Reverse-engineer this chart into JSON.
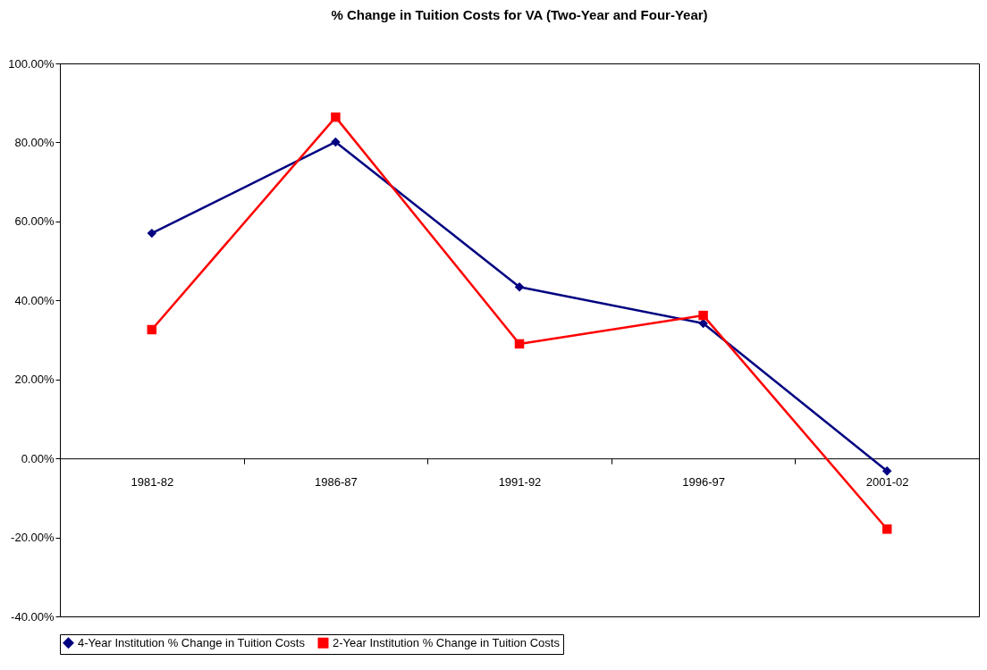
{
  "chart_data": {
    "type": "line",
    "title": "% Change in Tuition Costs for VA (Two-Year and Four-Year)",
    "categories": [
      "1981-82",
      "1986-87",
      "1991-92",
      "1996-97",
      "2001-02"
    ],
    "series": [
      {
        "name": "4-Year Institution % Change in Tuition Costs",
        "color": "#000080",
        "marker": "diamond",
        "values": [
          57.0,
          80.1,
          43.4,
          34.2,
          -3.2
        ]
      },
      {
        "name": "2-Year Institution % Change in Tuition Costs",
        "color": "#ff0000",
        "marker": "square",
        "values": [
          32.6,
          86.4,
          29.0,
          36.2,
          -17.9
        ]
      }
    ],
    "ylim": [
      -40,
      100
    ],
    "yticks": [
      {
        "value": -40,
        "label": "-40.00%"
      },
      {
        "value": -20,
        "label": "-20.00%"
      },
      {
        "value": 0,
        "label": "0.00%"
      },
      {
        "value": 20,
        "label": "20.00%"
      },
      {
        "value": 40,
        "label": "40.00%"
      },
      {
        "value": 60,
        "label": "60.00%"
      },
      {
        "value": 80,
        "label": "80.00%"
      },
      {
        "value": 100,
        "label": "100.00%"
      }
    ],
    "grid": false,
    "legend": "bottom",
    "line_style": "solid"
  }
}
